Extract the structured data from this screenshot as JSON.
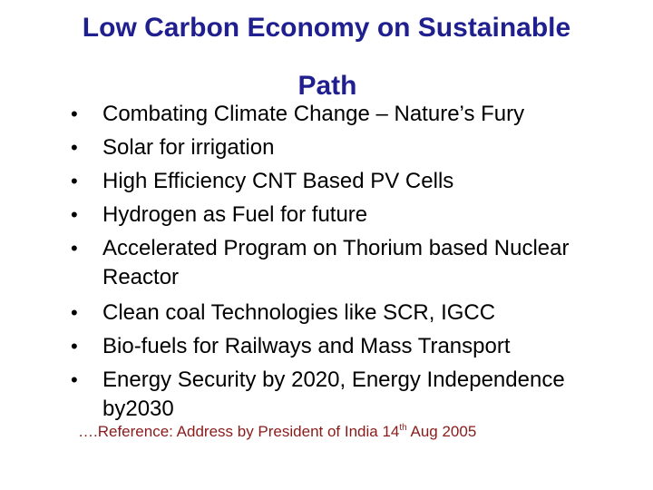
{
  "slide": {
    "title_line1": "Low Carbon Economy on Sustainable",
    "title_line2": "Path",
    "bullets": [
      {
        "line1": "Combating Climate Change – Nature’s Fury",
        "line2": ""
      },
      {
        "line1": "Solar for irrigation",
        "line2": ""
      },
      {
        "line1": "High Efficiency CNT Based PV Cells",
        "line2": ""
      },
      {
        "line1": "Hydrogen as Fuel for future",
        "line2": ""
      },
      {
        "line1": "Accelerated Program on Thorium based Nuclear",
        "line2": "Reactor"
      },
      {
        "line1": "Clean coal Technologies like SCR, IGCC",
        "line2": ""
      },
      {
        "line1": "Bio-fuels for Railways and Mass Transport",
        "line2": ""
      },
      {
        "line1": "Energy Security by 2020, Energy Independence",
        "line2": "by2030"
      }
    ],
    "reference_prefix": "….Reference: Address by President of India 14",
    "reference_sup": "th",
    "reference_suffix": " Aug 2005",
    "colors": {
      "title": "#1f1f8f",
      "text": "#000000",
      "reference": "#8a1b1b",
      "background": "#ffffff"
    }
  }
}
